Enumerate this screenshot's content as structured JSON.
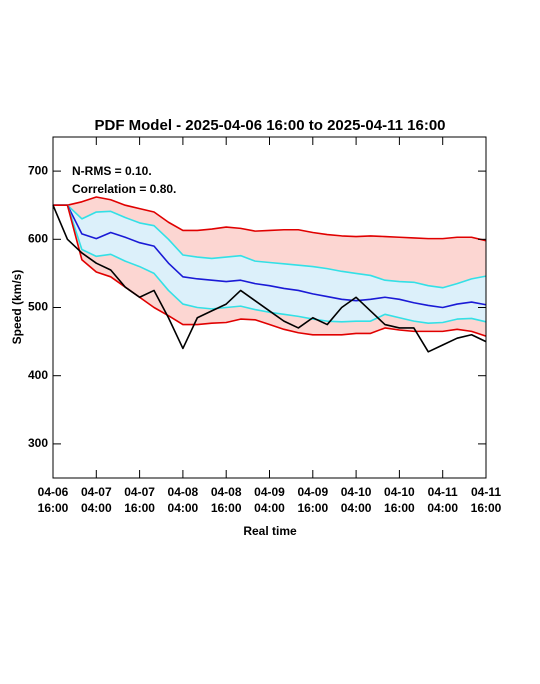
{
  "chart_data": {
    "type": "line",
    "title": "PDF Model - 2025-04-06 16:00 to 2025-04-11 16:00",
    "x_label": "Real time",
    "y_label": "Speed (km/s)",
    "annotations": [
      "N-RMS = 0.10.",
      "Correlation = 0.80."
    ],
    "x": [
      "04-06 16:00",
      "04-06 20:00",
      "04-07 00:00",
      "04-07 04:00",
      "04-07 08:00",
      "04-07 12:00",
      "04-07 16:00",
      "04-07 20:00",
      "04-08 00:00",
      "04-08 04:00",
      "04-08 08:00",
      "04-08 12:00",
      "04-08 16:00",
      "04-08 20:00",
      "04-09 00:00",
      "04-09 04:00",
      "04-09 08:00",
      "04-09 12:00",
      "04-09 16:00",
      "04-09 20:00",
      "04-10 00:00",
      "04-10 04:00",
      "04-10 08:00",
      "04-10 12:00",
      "04-10 16:00",
      "04-10 20:00",
      "04-11 00:00",
      "04-11 04:00",
      "04-11 08:00",
      "04-11 12:00",
      "04-11 16:00"
    ],
    "xlim": [
      "04-06 16:00",
      "04-11 16:00"
    ],
    "xticks": [
      "04-06 16:00",
      "04-07 04:00",
      "04-07 16:00",
      "04-08 04:00",
      "04-08 16:00",
      "04-09 04:00",
      "04-09 16:00",
      "04-10 04:00",
      "04-10 16:00",
      "04-11 04:00",
      "04-11 16:00"
    ],
    "ylim": [
      250,
      750
    ],
    "yticks": [
      300,
      400,
      500,
      600,
      700
    ],
    "series": [
      {
        "color": "#e00000",
        "values": [
          650,
          650,
          655,
          662,
          658,
          650,
          645,
          640,
          625,
          613,
          613,
          615,
          618,
          616,
          612,
          613,
          614,
          614,
          610,
          607,
          605,
          604,
          605,
          604,
          603,
          602,
          601,
          601,
          603,
          603,
          598
        ]
      },
      {
        "color": "#33e0e6",
        "values": [
          650,
          650,
          630,
          640,
          641,
          632,
          624,
          620,
          600,
          577,
          574,
          572,
          574,
          576,
          568,
          566,
          564,
          562,
          560,
          557,
          553,
          550,
          547,
          540,
          538,
          537,
          532,
          529,
          535,
          542,
          546
        ]
      },
      {
        "color": "#1a1ad6",
        "values": [
          650,
          650,
          608,
          601,
          610,
          603,
          595,
          590,
          565,
          545,
          542,
          540,
          538,
          540,
          535,
          532,
          528,
          525,
          520,
          516,
          512,
          510,
          512,
          515,
          512,
          507,
          503,
          500,
          505,
          508,
          504
        ]
      },
      {
        "color": "#33e0e6",
        "values": [
          650,
          650,
          585,
          575,
          578,
          568,
          560,
          550,
          525,
          505,
          500,
          498,
          500,
          502,
          497,
          493,
          490,
          487,
          483,
          480,
          479,
          480,
          480,
          490,
          485,
          480,
          477,
          478,
          483,
          484,
          479
        ]
      },
      {
        "color": "#e00000",
        "values": [
          650,
          650,
          570,
          552,
          545,
          530,
          515,
          500,
          488,
          475,
          475,
          477,
          478,
          483,
          482,
          475,
          468,
          463,
          460,
          460,
          460,
          462,
          462,
          470,
          467,
          465,
          465,
          465,
          468,
          465,
          458
        ]
      },
      {
        "color": "#000000",
        "values": [
          650,
          600,
          580,
          565,
          555,
          530,
          515,
          525,
          485,
          440,
          485,
          495,
          505,
          525,
          510,
          495,
          480,
          470,
          485,
          475,
          500,
          515,
          495,
          475,
          470,
          470,
          435,
          445,
          455,
          460,
          450
        ]
      }
    ],
    "bands": [
      {
        "series": [
          0,
          4
        ],
        "color": "#fcd6d2"
      },
      {
        "series": [
          1,
          3
        ],
        "color": "#dcf0fa"
      }
    ]
  }
}
